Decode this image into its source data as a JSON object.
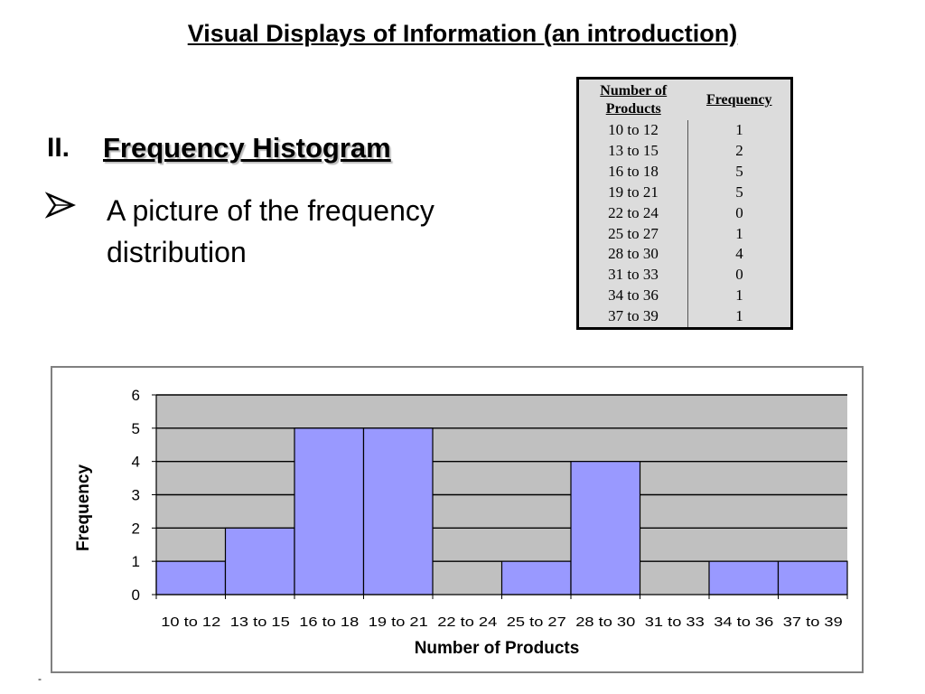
{
  "slide": {
    "title": "Visual Displays of Information (an introduction)",
    "section_number": "II.",
    "section_heading": "Frequency Histogram",
    "bullet_icon": "arrowhead-bullet-icon",
    "bullet_text": "A picture of the frequency distribution",
    "corner_mark": "-"
  },
  "table": {
    "headers": [
      "Number of Products",
      "Frequency"
    ],
    "rows": [
      [
        "10 to 12",
        "1"
      ],
      [
        "13 to 15",
        "2"
      ],
      [
        "16 to 18",
        "5"
      ],
      [
        "19 to 21",
        "5"
      ],
      [
        "22 to 24",
        "0"
      ],
      [
        "25 to 27",
        "1"
      ],
      [
        "28 to 30",
        "4"
      ],
      [
        "31 to 33",
        "0"
      ],
      [
        "34 to 36",
        "1"
      ],
      [
        "37 to 39",
        "1"
      ]
    ]
  },
  "chart_data": {
    "type": "bar",
    "categories": [
      "10 to 12",
      "13 to 15",
      "16 to 18",
      "19 to 21",
      "22 to 24",
      "25 to 27",
      "28 to 30",
      "31 to 33",
      "34 to 36",
      "37 to 39"
    ],
    "values": [
      1,
      2,
      5,
      5,
      0,
      1,
      4,
      0,
      1,
      1
    ],
    "xlabel": "Number of Products",
    "ylabel": "Frequency",
    "ylim": [
      0,
      6
    ],
    "yticks": [
      0,
      1,
      2,
      3,
      4,
      5,
      6
    ],
    "grid": true,
    "legend": "none",
    "bar_color": "#9999ff",
    "plot_background": "#c0c0c0"
  }
}
